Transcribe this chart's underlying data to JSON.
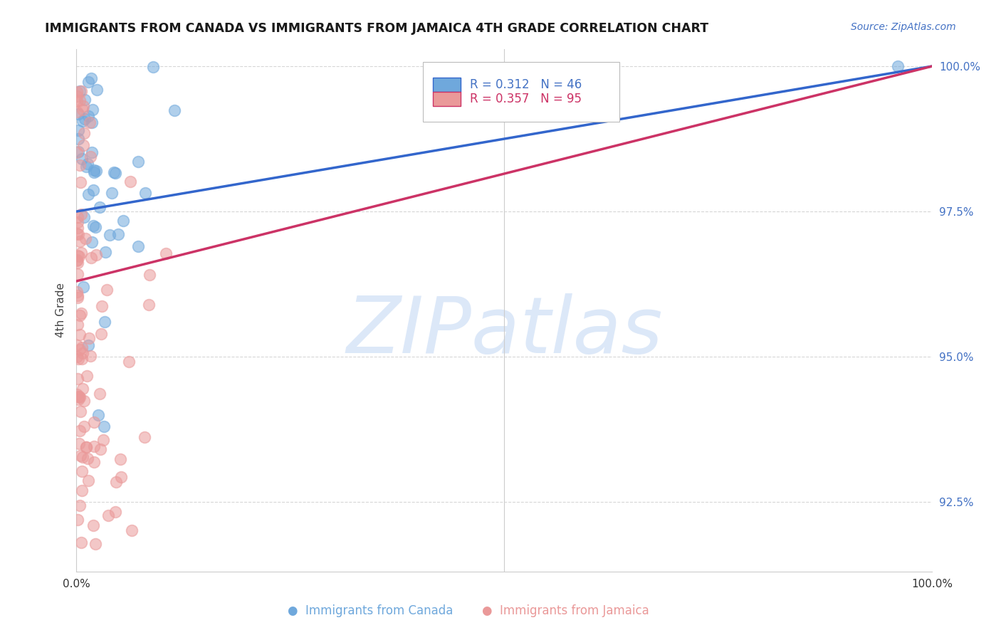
{
  "title": "IMMIGRANTS FROM CANADA VS IMMIGRANTS FROM JAMAICA 4TH GRADE CORRELATION CHART",
  "source": "Source: ZipAtlas.com",
  "ylabel": "4th Grade",
  "xlim": [
    0.0,
    1.0
  ],
  "ylim": [
    0.913,
    1.003
  ],
  "ytick_vals": [
    0.925,
    0.95,
    0.975,
    1.0
  ],
  "ytick_labels": [
    "92.5%",
    "95.0%",
    "97.5%",
    "100.0%"
  ],
  "xtick_vals": [
    0.0,
    0.2,
    0.4,
    0.5,
    0.6,
    0.8,
    1.0
  ],
  "xtick_labels": [
    "0.0%",
    "",
    "",
    "",
    "",
    "",
    "100.0%"
  ],
  "canada_R": 0.312,
  "canada_N": 46,
  "jamaica_R": 0.357,
  "jamaica_N": 95,
  "canada_color": "#6fa8dc",
  "jamaica_color": "#ea9999",
  "canada_line_color": "#3366cc",
  "jamaica_line_color": "#cc3366",
  "watermark_text": "ZIPatlas",
  "watermark_color": "#dce8f8",
  "canada_line_x0": 0.0,
  "canada_line_y0": 0.975,
  "canada_line_x1": 1.0,
  "canada_line_y1": 1.0,
  "jamaica_line_x0": 0.0,
  "jamaica_line_y0": 0.963,
  "jamaica_line_x1": 1.0,
  "jamaica_line_y1": 1.0,
  "legend_canada_text": "R = 0.312   N = 46",
  "legend_jamaica_text": "R = 0.357   N = 95"
}
